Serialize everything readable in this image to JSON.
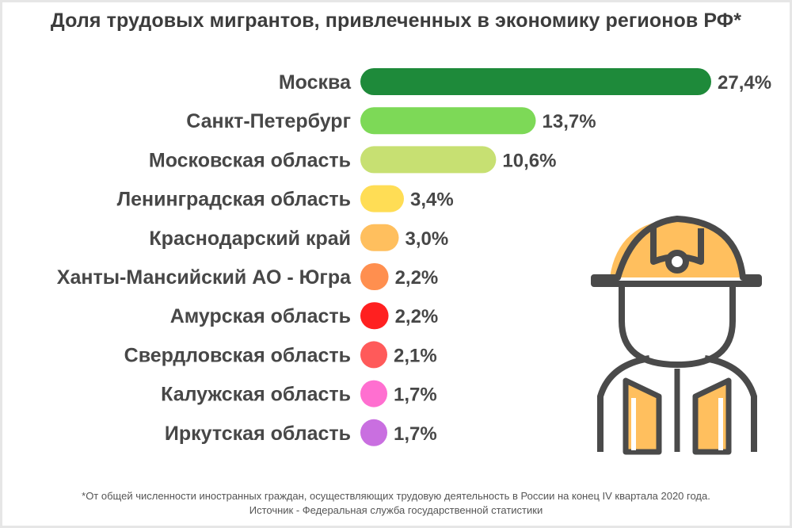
{
  "title": "Доля трудовых мигрантов, привлеченных в экономику регионов РФ*",
  "chart_data": {
    "type": "bar",
    "orientation": "horizontal",
    "title": "Доля трудовых мигрантов, привлеченных в экономику регионов РФ*",
    "unit": "%",
    "categories": [
      "Москва",
      "Санкт-Петербург",
      "Московская область",
      "Ленинградская область",
      "Краснодарский край",
      "Ханты-Мансийский АО - Югра",
      "Амурская область",
      "Свердловская область",
      "Калужская область",
      "Иркутская область"
    ],
    "values": [
      27.4,
      13.7,
      10.6,
      3.4,
      3.0,
      2.2,
      2.2,
      2.1,
      1.7,
      1.7
    ],
    "value_labels": [
      "27,4%",
      "13,7%",
      "10,6%",
      "3,4%",
      "3,0%",
      "2,2%",
      "2,2%",
      "2,1%",
      "1,7%",
      "1,7%"
    ],
    "colors": [
      "#1e8a3a",
      "#7dd957",
      "#c7e072",
      "#ffdd55",
      "#ffbf5e",
      "#ff8f4f",
      "#ff2020",
      "#ff5a5a",
      "#ff6fd0",
      "#c96fe0"
    ],
    "xlim": [
      0,
      27.4
    ],
    "grid": false,
    "legend": "none"
  },
  "footnote": {
    "line1": "*От общей численности иностранных граждан, осуществляющих трудовую деятельность в России на конец IV квартала 2020 года.",
    "line2": "Источник - Федеральная служба государственной статистики"
  },
  "icons": {
    "worker": "construction-worker-icon"
  },
  "colors": {
    "icon_accent": "#ffbf5e",
    "icon_stroke": "#4a4a4a"
  }
}
